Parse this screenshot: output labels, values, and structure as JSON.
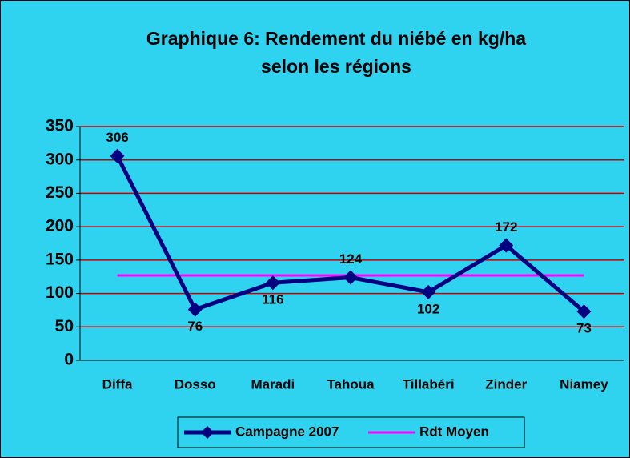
{
  "chart_data": {
    "type": "line",
    "title": "Graphique 6: Rendement du niébé en kg/ha",
    "subtitle": "selon les régions",
    "categories": [
      "Diffa",
      "Dosso",
      "Maradi",
      "Tahoua",
      "Tillabéri",
      "Zinder",
      "Niamey"
    ],
    "series": [
      {
        "name": "Campagne 2007",
        "color": "#000080",
        "values": [
          306,
          76,
          116,
          124,
          102,
          172,
          73
        ]
      },
      {
        "name": "Rdt Moyen",
        "color": "#ff00ff",
        "values": [
          127,
          127,
          127,
          127,
          127,
          127,
          127
        ]
      }
    ],
    "ylim": [
      0,
      350
    ],
    "yticks": [
      0,
      50,
      100,
      150,
      200,
      250,
      300,
      350
    ],
    "grid": true,
    "grid_color": "#c00000",
    "background": "#2fd3ef",
    "legend": "bottom"
  }
}
